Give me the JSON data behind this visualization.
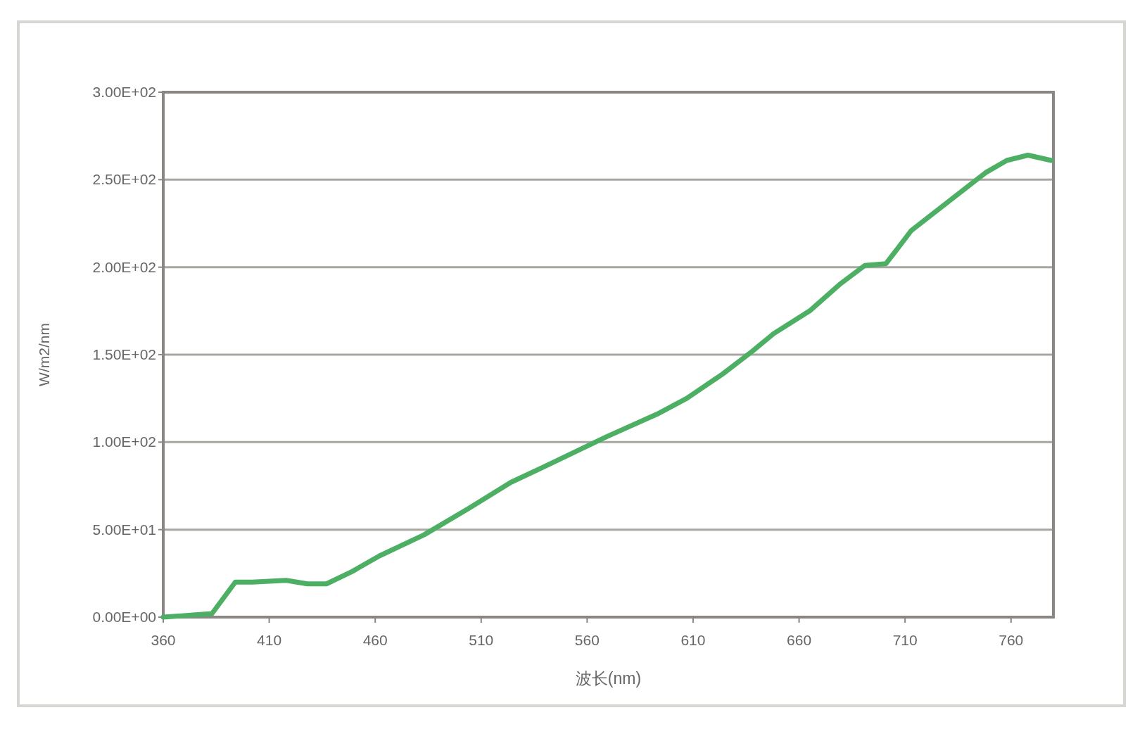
{
  "chart_data": {
    "type": "line",
    "xlabel": "波长(nm)",
    "ylabel": "W/m2/nm",
    "x": [
      360,
      383,
      394,
      402,
      418,
      428,
      437,
      449,
      462,
      483,
      504,
      524,
      545,
      569,
      593,
      607,
      624,
      638,
      648,
      665,
      679,
      691,
      701,
      713,
      731,
      748,
      758,
      768,
      779
    ],
    "series": [
      {
        "color": "#4caf64",
        "values": [
          0,
          2,
          20,
          20,
          21,
          19,
          19,
          26,
          35,
          47,
          62,
          77,
          89,
          103,
          116,
          125,
          139,
          152,
          162,
          175,
          190,
          201,
          202,
          221,
          238,
          254,
          261,
          264,
          261
        ]
      }
    ],
    "xlim": [
      360,
      780
    ],
    "xticks": [
      360,
      410,
      460,
      510,
      560,
      610,
      660,
      710,
      760
    ],
    "ylim": [
      0,
      300
    ],
    "yticks": [
      {
        "value": 0,
        "label": "0.00E+00"
      },
      {
        "value": 50,
        "label": "5.00E+01"
      },
      {
        "value": 100,
        "label": "1.00E+02"
      },
      {
        "value": 150,
        "label": "1.50E+02"
      },
      {
        "value": 200,
        "label": "2.00E+02"
      },
      {
        "value": 250,
        "label": "2.50E+02"
      },
      {
        "value": 300,
        "label": "3.00E+02"
      }
    ],
    "grid": "y",
    "marker": "none",
    "line_style": "solid"
  }
}
